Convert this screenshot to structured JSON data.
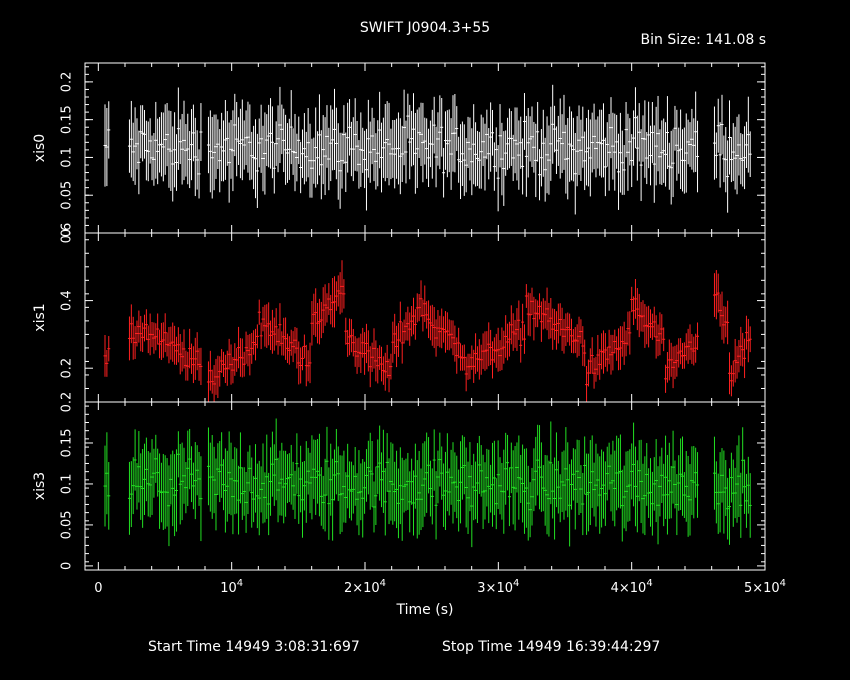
{
  "chart_data": {
    "type": "scatter",
    "title": "SWIFT J0904.3+55",
    "bin_size_label": "Bin Size: 141.08 s",
    "xlabel": "Time (s)",
    "x_ticks": [
      {
        "value": 0,
        "base": "0",
        "exp": ""
      },
      {
        "value": 10000,
        "base": "10",
        "exp": "4"
      },
      {
        "value": 20000,
        "base": "2×10",
        "exp": "4"
      },
      {
        "value": 30000,
        "base": "3×10",
        "exp": "4"
      },
      {
        "value": 40000,
        "base": "4×10",
        "exp": "4"
      },
      {
        "value": 50000,
        "base": "5×10",
        "exp": "4"
      }
    ],
    "xlim": [
      -1000,
      50000
    ],
    "footer": {
      "start": "Start Time 14949  3:08:31:697",
      "stop": "Stop Time 14949 16:39:44:297"
    },
    "gaps": [
      [
        900,
        2200
      ],
      [
        7800,
        8200
      ],
      [
        45000,
        46200
      ]
    ],
    "panels": [
      {
        "name": "xis0",
        "color": "#ffffff",
        "ylim": [
          0,
          0.225
        ],
        "yticks": [
          0,
          0.05,
          0.1,
          0.15,
          0.2
        ],
        "ytick_labels": [
          "0",
          "0.05",
          "0.1",
          "0.15",
          "0.2"
        ],
        "bins": [
          {
            "x_start": 0,
            "x_end": 49000,
            "mean": 0.113,
            "err": 0.042
          }
        ]
      },
      {
        "name": "xis1",
        "color": "#ff2020",
        "ylim": [
          0.1,
          0.6
        ],
        "yticks": [
          0.2,
          0.4,
          0.6
        ],
        "ytick_labels": [
          "0.2",
          "0.4",
          "0.6"
        ],
        "bins": [
          {
            "x_start": 0,
            "x_end": 3000,
            "mean": 0.25,
            "err": 0.05
          },
          {
            "x_start": 3000,
            "x_end": 8000,
            "mean": 0.26,
            "err": 0.05
          },
          {
            "x_start": 8000,
            "x_end": 12000,
            "mean": 0.22,
            "err": 0.05
          },
          {
            "x_start": 12000,
            "x_end": 16000,
            "mean": 0.28,
            "err": 0.05
          },
          {
            "x_start": 16000,
            "x_end": 18500,
            "mean": 0.38,
            "err": 0.06
          },
          {
            "x_start": 18500,
            "x_end": 22000,
            "mean": 0.24,
            "err": 0.05
          },
          {
            "x_start": 22000,
            "x_end": 24500,
            "mean": 0.33,
            "err": 0.05
          },
          {
            "x_start": 24500,
            "x_end": 27500,
            "mean": 0.3,
            "err": 0.05
          },
          {
            "x_start": 27500,
            "x_end": 32000,
            "mean": 0.26,
            "err": 0.05
          },
          {
            "x_start": 32000,
            "x_end": 36500,
            "mean": 0.33,
            "err": 0.05
          },
          {
            "x_start": 36500,
            "x_end": 40000,
            "mean": 0.24,
            "err": 0.05
          },
          {
            "x_start": 40000,
            "x_end": 42500,
            "mean": 0.33,
            "err": 0.05
          },
          {
            "x_start": 42500,
            "x_end": 45000,
            "mean": 0.23,
            "err": 0.05
          },
          {
            "x_start": 46200,
            "x_end": 47200,
            "mean": 0.36,
            "err": 0.06
          },
          {
            "x_start": 47200,
            "x_end": 49000,
            "mean": 0.23,
            "err": 0.05
          }
        ]
      },
      {
        "name": "xis3",
        "color": "#22e022",
        "ylim": [
          -0.005,
          0.2
        ],
        "yticks": [
          0,
          0.05,
          0.1,
          0.15,
          0.2
        ],
        "ytick_labels": [
          "0",
          "0.05",
          "0.1",
          "0.15",
          "0.2"
        ],
        "bins": [
          {
            "x_start": 0,
            "x_end": 49000,
            "mean": 0.1,
            "err": 0.04
          }
        ]
      }
    ]
  }
}
